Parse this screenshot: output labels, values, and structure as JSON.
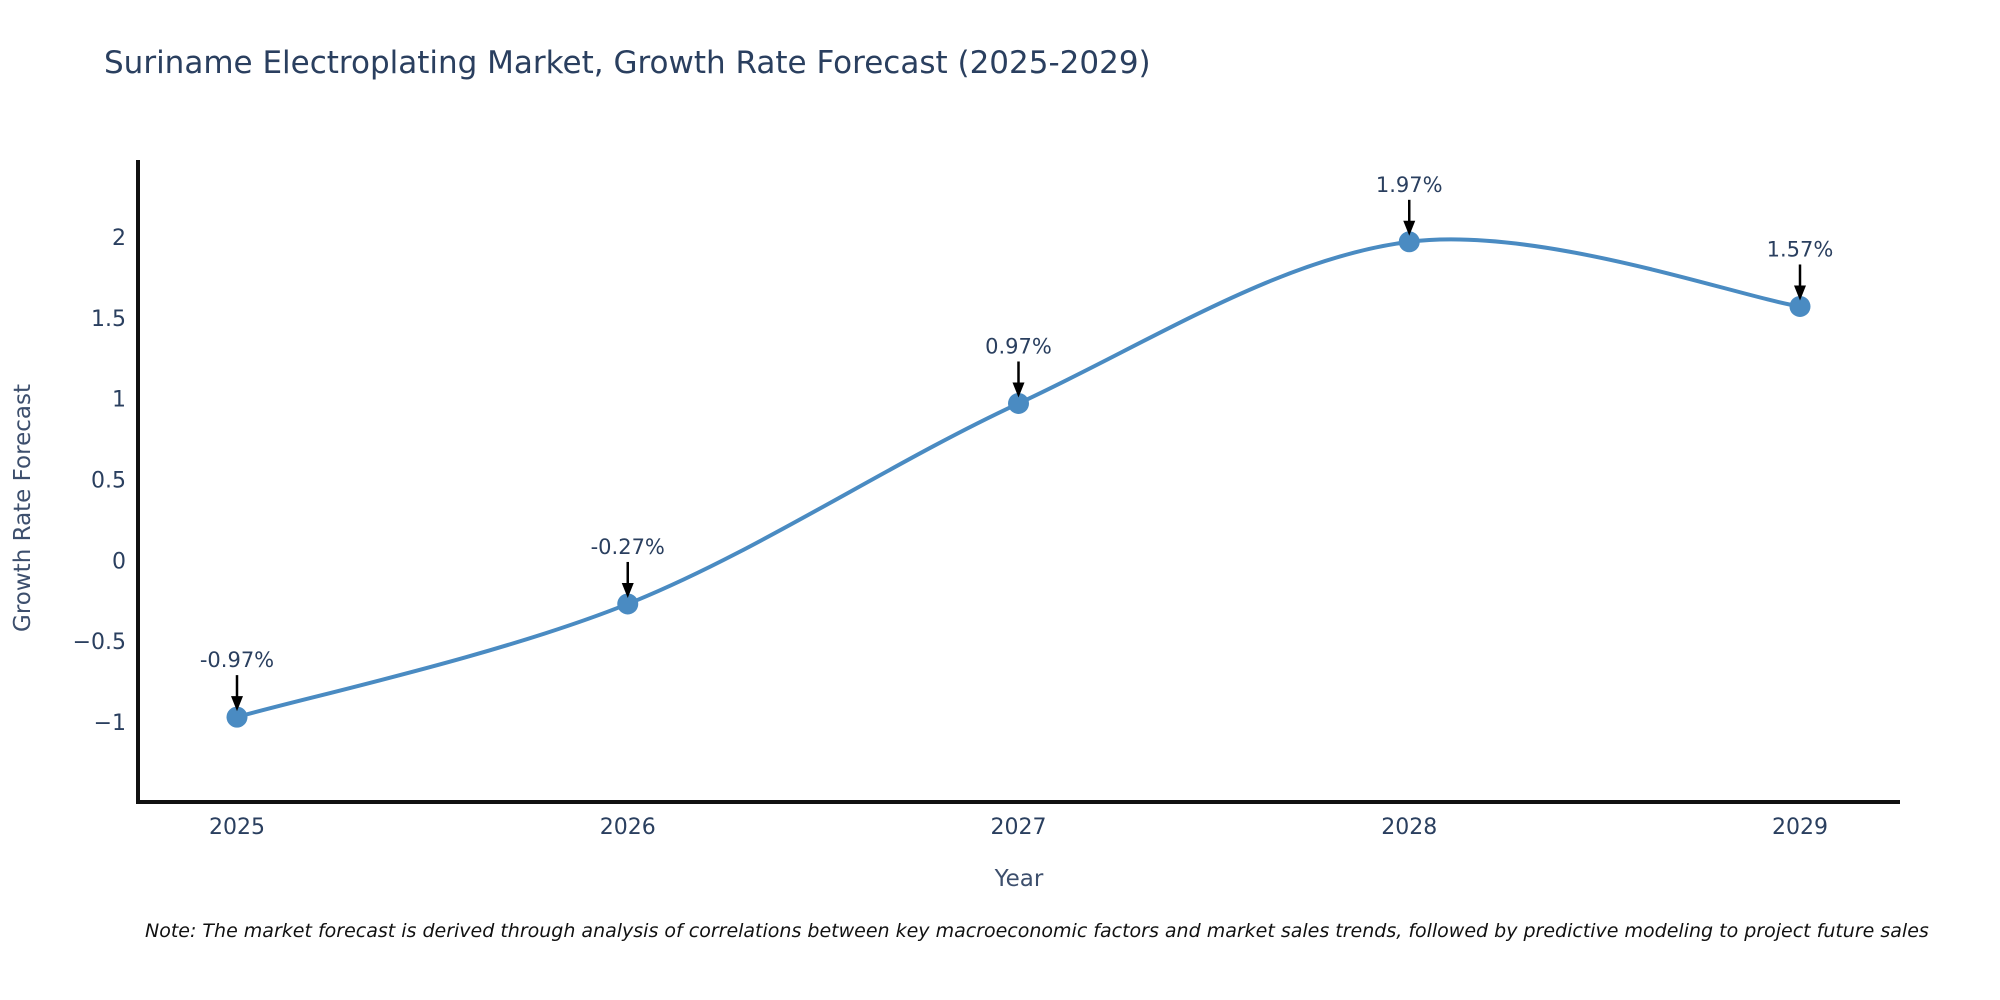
{
  "title": "Suriname Electroplating Market, Growth Rate Forecast (2025-2029)",
  "note": "Note: The market forecast is derived through analysis of correlations between key macroeconomic factors and market sales trends, followed by predictive modeling to project future sales",
  "colors": {
    "line": "#4a8bc2",
    "marker": "#4a8bc2",
    "axis": "#111111",
    "text": "#2a3f5f",
    "axis_title": "#3d4f6d",
    "annotation_arrow": "#000000",
    "background": "#ffffff"
  },
  "chart_data": {
    "type": "line",
    "title": "Suriname Electroplating Market, Growth Rate Forecast (2025-2029)",
    "x": [
      2025,
      2026,
      2027,
      2028,
      2029
    ],
    "series": [
      {
        "name": "Growth Rate Forecast",
        "values": [
          -0.97,
          -0.27,
          0.97,
          1.97,
          1.57
        ]
      }
    ],
    "point_labels": [
      "-0.97%",
      "-0.27%",
      "0.97%",
      "1.97%",
      "1.57%"
    ],
    "xlabel": "Year",
    "ylabel": "Growth Rate Forecast",
    "xticks": [
      "2025",
      "2026",
      "2027",
      "2028",
      "2029"
    ],
    "yticks": [
      2,
      1.5,
      1,
      0.5,
      0,
      -0.5,
      -1
    ],
    "ytick_labels": [
      "2",
      "1.5",
      "1",
      "0.5",
      "0",
      "−0.5",
      "−1"
    ],
    "ylim": [
      -1.5,
      2.45
    ],
    "line_shape": "spline",
    "grid": false,
    "legend_position": "none"
  }
}
